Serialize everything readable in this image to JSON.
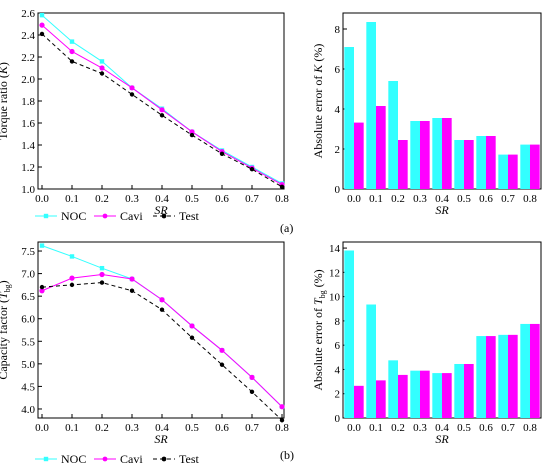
{
  "panel_labels": [
    "(a)",
    "(b)"
  ],
  "colors": {
    "noc": "#33ffff",
    "cavi": "#ff00ff",
    "test": "#000000"
  },
  "chart_data": [
    {
      "id": "torque",
      "type": "line",
      "xlabel": "SR",
      "ylabel_main": "Torque ratio (",
      "ylabel_var": "K",
      "ylabel_tail": ")",
      "x": [
        0.0,
        0.1,
        0.2,
        0.3,
        0.4,
        0.5,
        0.6,
        0.7,
        0.8
      ],
      "x_ticks": [
        "0.0",
        "0.1",
        "0.2",
        "0.3",
        "0.4",
        "0.5",
        "0.6",
        "0.7",
        "0.8"
      ],
      "ylim": [
        1.0,
        2.6
      ],
      "y_ticks": [
        "1.0",
        "1.2",
        "1.4",
        "1.6",
        "1.8",
        "2.0",
        "2.2",
        "2.4",
        "2.6"
      ],
      "series": [
        {
          "name": "NOC",
          "values": [
            2.58,
            2.34,
            2.16,
            1.92,
            1.73,
            1.52,
            1.35,
            1.2,
            1.05
          ]
        },
        {
          "name": "Cavi",
          "values": [
            2.49,
            2.25,
            2.1,
            1.92,
            1.72,
            1.52,
            1.34,
            1.19,
            1.04
          ]
        },
        {
          "name": "Test",
          "values": [
            2.41,
            2.16,
            2.05,
            1.86,
            1.67,
            1.49,
            1.32,
            1.18,
            1.02
          ]
        }
      ],
      "legend": [
        "NOC",
        "Cavi",
        "Test"
      ]
    },
    {
      "id": "torque-err",
      "type": "bar",
      "xlabel": "SR",
      "ylabel_main": "Absolute error of ",
      "ylabel_var": "K",
      "ylabel_tail": " (%)",
      "categories": [
        "0.0",
        "0.1",
        "0.2",
        "0.3",
        "0.4",
        "0.5",
        "0.6",
        "0.7",
        "0.8"
      ],
      "ylim": [
        0,
        8.8
      ],
      "y_ticks": [
        "0",
        "2",
        "4",
        "6",
        "8"
      ],
      "series": [
        {
          "values": [
            7.1,
            8.35,
            5.4,
            3.4,
            3.55,
            2.45,
            2.65,
            1.72,
            2.22
          ]
        },
        {
          "values": [
            3.32,
            4.15,
            2.45,
            3.4,
            3.55,
            2.45,
            2.65,
            1.72,
            2.22
          ]
        }
      ]
    },
    {
      "id": "capacity",
      "type": "line",
      "xlabel": "SR",
      "ylabel_main": "Capacity factor (",
      "ylabel_var": "T",
      "ylabel_sub": "bg",
      "ylabel_tail": ")",
      "x": [
        0.0,
        0.1,
        0.2,
        0.3,
        0.4,
        0.5,
        0.6,
        0.7,
        0.8
      ],
      "x_ticks": [
        "0.0",
        "0.1",
        "0.2",
        "0.3",
        "0.4",
        "0.5",
        "0.6",
        "0.7",
        "0.8"
      ],
      "ylim": [
        3.8,
        7.7
      ],
      "y_ticks": [
        "4.0",
        "4.5",
        "5.0",
        "5.5",
        "6.0",
        "6.5",
        "7.0",
        "7.5"
      ],
      "series": [
        {
          "name": "NOC",
          "values": [
            7.62,
            7.38,
            7.12,
            6.88,
            6.42,
            5.84,
            5.3,
            4.7,
            4.05
          ]
        },
        {
          "name": "Cavi",
          "values": [
            6.62,
            6.9,
            6.98,
            6.88,
            6.42,
            5.84,
            5.3,
            4.7,
            4.05
          ]
        },
        {
          "name": "Test",
          "values": [
            6.7,
            6.75,
            6.8,
            6.62,
            6.2,
            5.58,
            4.98,
            4.38,
            3.75
          ]
        }
      ],
      "legend": [
        "NOC",
        "Cavi",
        "Test"
      ]
    },
    {
      "id": "capacity-err",
      "type": "bar",
      "xlabel": "SR",
      "ylabel_main": "Absolute error of ",
      "ylabel_var": "T",
      "ylabel_sub": "bg",
      "ylabel_tail": " (%)",
      "categories": [
        "0.0",
        "0.1",
        "0.2",
        "0.3",
        "0.4",
        "0.5",
        "0.6",
        "0.7",
        "0.8"
      ],
      "ylim": [
        0,
        14.5
      ],
      "y_ticks": [
        "0",
        "2",
        "4",
        "6",
        "8",
        "10",
        "12",
        "14"
      ],
      "series": [
        {
          "values": [
            13.8,
            9.35,
            4.75,
            3.9,
            3.7,
            4.45,
            6.75,
            6.85,
            7.75
          ]
        },
        {
          "values": [
            2.65,
            3.1,
            3.55,
            3.9,
            3.7,
            4.45,
            6.75,
            6.85,
            7.75
          ]
        }
      ]
    }
  ]
}
